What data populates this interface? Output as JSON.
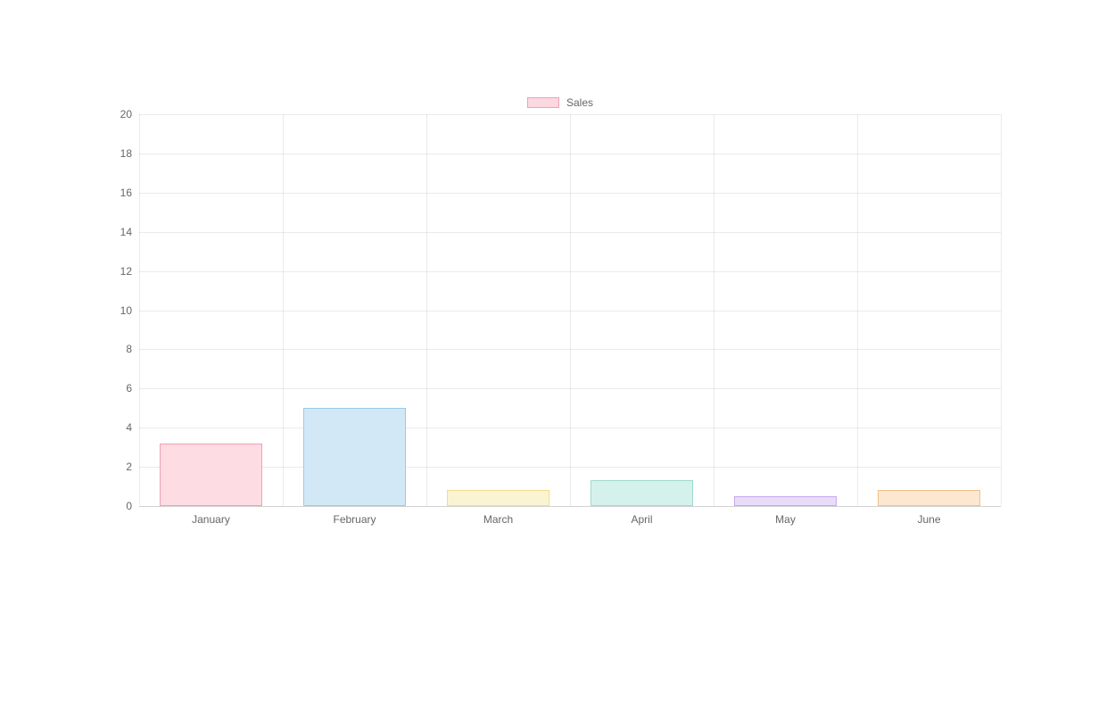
{
  "chart": {
    "type": "bar",
    "legend": {
      "label": "Sales",
      "box_fill": "#fcd8e0",
      "box_border": "#f59fb3"
    },
    "categories": [
      "January",
      "February",
      "March",
      "April",
      "May",
      "June"
    ],
    "values": [
      3.2,
      5.0,
      0.8,
      1.3,
      0.5,
      0.8
    ],
    "bar_fill_colors": [
      "#fddce3",
      "#d2e8f6",
      "#fbf4d3",
      "#d5f1eb",
      "#e9dcfa",
      "#fce7d1"
    ],
    "bar_border_colors": [
      "#f59fb3",
      "#9ccaea",
      "#eedc8e",
      "#9edacc",
      "#c6a8f0",
      "#f4c08e"
    ],
    "ylim": [
      0,
      20
    ],
    "ytick_step": 2,
    "bar_width_ratio": 0.72,
    "background_color": "#ffffff",
    "grid_color": "rgba(0,0,0,0.08)",
    "tick_label_fontsize": 12,
    "tick_label_color": "#666666",
    "legend_fontsize": 12
  }
}
